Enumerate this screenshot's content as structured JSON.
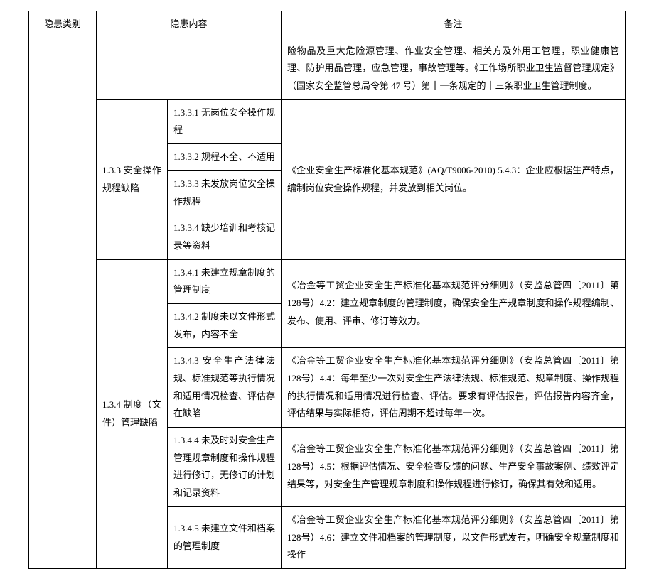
{
  "table": {
    "headers": {
      "category": "隐患类别",
      "content": "隐患内容",
      "remark": "备注"
    },
    "rows": [
      {
        "category": "",
        "sub": "",
        "content": "",
        "remark": "险物品及重大危险源管理、作业安全管理、相关方及外用工管理，职业健康管理、防护用品管理，应急管理，事故管理等。《工作场所职业卫生监督管理规定》（国家安全监管总局令第 47 号）第十一条规定的十三条职业卫生管理制度。"
      },
      {
        "sub": "1.3.3 安全操作规程缺陷",
        "content": "1.3.3.1 无岗位安全操作规程",
        "remark": "《企业安全生产标准化基本规范》(AQ/T9006-2010) 5.4.3：企业应根据生产特点，编制岗位安全操作规程，并发放到相关岗位。"
      },
      {
        "content": "1.3.3.2 规程不全、不适用"
      },
      {
        "content": "1.3.3.3 未发放岗位安全操作规程"
      },
      {
        "content": "1.3.3.4 缺少培训和考核记录等资料"
      },
      {
        "sub": "1.3.4 制度（文件）管理缺陷",
        "content": "1.3.4.1 未建立规章制度的管理制度",
        "remark": "《冶金等工贸企业安全生产标准化基本规范评分细则》（安监总管四〔2011〕第 128号）4.2：建立规章制度的管理制度，确保安全生产规章制度和操作规程编制、发布、使用、评审、修订等效力。"
      },
      {
        "content": "1.3.4.2 制度未以文件形式发布，内容不全"
      },
      {
        "content": "1.3.4.3 安全生产法律法规、标准规范等执行情况和适用情况检查、评估存在缺陷",
        "remark": "《冶金等工贸企业安全生产标准化基本规范评分细则》（安监总管四〔2011〕第 128号）4.4：每年至少一次对安全生产法律法规、标准规范、规章制度、操作规程的执行情况和适用情况进行检查、评估。要求有评估报告，评估报告内容齐全，评估结果与实际相符，评估周期不超过每年一次。"
      },
      {
        "content": "1.3.4.4 未及时对安全生产管理规章制度和操作规程进行修订，无修订的计划和记录资料",
        "remark": "《冶金等工贸企业安全生产标准化基本规范评分细则》（安监总管四〔2011〕第 128号）4.5：根据评估情况、安全检查反馈的问题、生产安全事故案例、绩效评定结果等，对安全生产管理规章制度和操作规程进行修订，确保其有效和适用。"
      },
      {
        "content": "1.3.4.5 未建立文件和档案的管理制度",
        "remark": "《冶金等工贸企业安全生产标准化基本规范评分细则》（安监总管四〔2011〕第 128号）4.6：建立文件和档案的管理制度，以文件形式发布，明确安全规章制度和操作"
      }
    ]
  }
}
